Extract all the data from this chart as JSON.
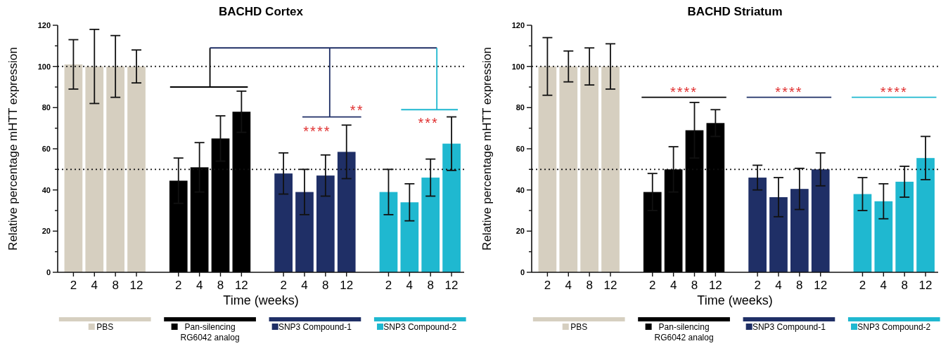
{
  "chart_data": [
    {
      "type": "bar",
      "title": "BACHD Cortex",
      "xlabel": "Time (weeks)",
      "ylabel": "Relative percentage mHTT expression",
      "categories": [
        "2",
        "4",
        "8",
        "12",
        null,
        "2",
        "4",
        "8",
        "12",
        null,
        "2",
        "4",
        "8",
        "12",
        null,
        "2",
        "4",
        "8",
        "12"
      ],
      "series": [
        {
          "name": "PBS",
          "color": "#d6cfc0",
          "values": [
            101,
            100,
            100,
            100,
            null,
            null,
            null,
            null,
            null,
            null,
            null,
            null,
            null,
            null,
            null,
            null,
            null,
            null,
            null
          ],
          "errors": [
            12,
            18,
            15,
            8,
            null,
            null,
            null,
            null,
            null,
            null,
            null,
            null,
            null,
            null,
            null,
            null,
            null,
            null,
            null
          ]
        },
        {
          "name": "Pan-silencing RG6042 analog",
          "color": "#000000",
          "values": [
            null,
            null,
            null,
            null,
            null,
            44.5,
            51,
            65,
            78,
            null,
            null,
            null,
            null,
            null,
            null,
            null,
            null,
            null,
            null
          ],
          "errors": [
            null,
            null,
            null,
            null,
            null,
            11,
            12,
            11,
            10,
            null,
            null,
            null,
            null,
            null,
            null,
            null,
            null,
            null,
            null
          ]
        },
        {
          "name": "SNP3 Compound-1",
          "color": "#1f2f66",
          "values": [
            null,
            null,
            null,
            null,
            null,
            null,
            null,
            null,
            null,
            null,
            48,
            39,
            47,
            58.5,
            null,
            null,
            null,
            null,
            null
          ],
          "errors": [
            null,
            null,
            null,
            null,
            null,
            null,
            null,
            null,
            null,
            null,
            10,
            11,
            10,
            13,
            null,
            null,
            null,
            null,
            null
          ]
        },
        {
          "name": "SNP3 Compound-2",
          "color": "#1fb8d0",
          "values": [
            null,
            null,
            null,
            null,
            null,
            null,
            null,
            null,
            null,
            null,
            null,
            null,
            null,
            null,
            null,
            39,
            34,
            46,
            62.5
          ],
          "errors": [
            null,
            null,
            null,
            null,
            null,
            null,
            null,
            null,
            null,
            null,
            null,
            null,
            null,
            null,
            null,
            11,
            9,
            9,
            13
          ]
        }
      ],
      "ylim": [
        0,
        120
      ],
      "yticks": [
        0,
        {
          "value": 10,
          "label": null
        },
        20,
        {
          "value": 30,
          "label": null
        },
        40,
        {
          "value": 50,
          "label": null
        },
        60,
        {
          "value": 70,
          "label": null
        },
        80,
        {
          "value": 90,
          "label": null
        },
        100,
        {
          "value": 110,
          "label": null
        },
        120
      ],
      "ref_lines": [
        {
          "axis": "y",
          "value": 100,
          "line_style": "dotted"
        },
        {
          "axis": "y",
          "value": 50,
          "line_style": "dotted"
        }
      ],
      "annotations": [
        "****",
        "**",
        "***"
      ],
      "legend": "bottom",
      "grid": false,
      "stacked": true
    },
    {
      "type": "bar",
      "title": "BACHD Striatum",
      "xlabel": "Time (weeks)",
      "ylabel": "Relative percentage mHTT expression",
      "categories": [
        "2",
        "4",
        "8",
        "12",
        null,
        "2",
        "4",
        "8",
        "12",
        null,
        "2",
        "4",
        "8",
        "12",
        null,
        "2",
        "4",
        "8",
        "12"
      ],
      "series": [
        {
          "name": "PBS",
          "color": "#d6cfc0",
          "values": [
            100,
            100,
            100,
            100,
            null,
            null,
            null,
            null,
            null,
            null,
            null,
            null,
            null,
            null,
            null,
            null,
            null,
            null,
            null
          ],
          "errors": [
            14,
            7.5,
            9,
            11,
            null,
            null,
            null,
            null,
            null,
            null,
            null,
            null,
            null,
            null,
            null,
            null,
            null,
            null,
            null
          ]
        },
        {
          "name": "Pan-silencing RG6042 analog",
          "color": "#000000",
          "values": [
            null,
            null,
            null,
            null,
            null,
            39,
            50,
            69,
            72.5,
            null,
            null,
            null,
            null,
            null,
            null,
            null,
            null,
            null,
            null
          ],
          "errors": [
            null,
            null,
            null,
            null,
            null,
            9,
            11,
            13.5,
            6.5,
            null,
            null,
            null,
            null,
            null,
            null,
            null,
            null,
            null,
            null
          ]
        },
        {
          "name": "SNP3 Compound-1",
          "color": "#1f2f66",
          "values": [
            null,
            null,
            null,
            null,
            null,
            null,
            null,
            null,
            null,
            null,
            46,
            36.5,
            40.5,
            50,
            null,
            null,
            null,
            null,
            null
          ],
          "errors": [
            null,
            null,
            null,
            null,
            null,
            null,
            null,
            null,
            null,
            null,
            6,
            9.5,
            10,
            8,
            null,
            null,
            null,
            null,
            null
          ]
        },
        {
          "name": "SNP3 Compound-2",
          "color": "#1fb8d0",
          "values": [
            null,
            null,
            null,
            null,
            null,
            null,
            null,
            null,
            null,
            null,
            null,
            null,
            null,
            null,
            null,
            38,
            34.5,
            44,
            55.5
          ],
          "errors": [
            null,
            null,
            null,
            null,
            null,
            null,
            null,
            null,
            null,
            null,
            null,
            null,
            null,
            null,
            null,
            8,
            8.5,
            7.5,
            10.5
          ]
        }
      ],
      "ylim": [
        0,
        120
      ],
      "yticks": [
        0,
        {
          "value": 10,
          "label": null
        },
        20,
        {
          "value": 30,
          "label": null
        },
        40,
        {
          "value": 50,
          "label": null
        },
        60,
        {
          "value": 70,
          "label": null
        },
        80,
        {
          "value": 90,
          "label": null
        },
        100,
        {
          "value": 110,
          "label": null
        },
        120
      ],
      "ref_lines": [
        {
          "axis": "y",
          "value": 100,
          "line_style": "dotted"
        },
        {
          "axis": "y",
          "value": 50,
          "line_style": "dotted"
        }
      ],
      "annotations": [
        "****",
        "****",
        "****"
      ],
      "legend": "bottom",
      "grid": false,
      "stacked": true
    }
  ]
}
